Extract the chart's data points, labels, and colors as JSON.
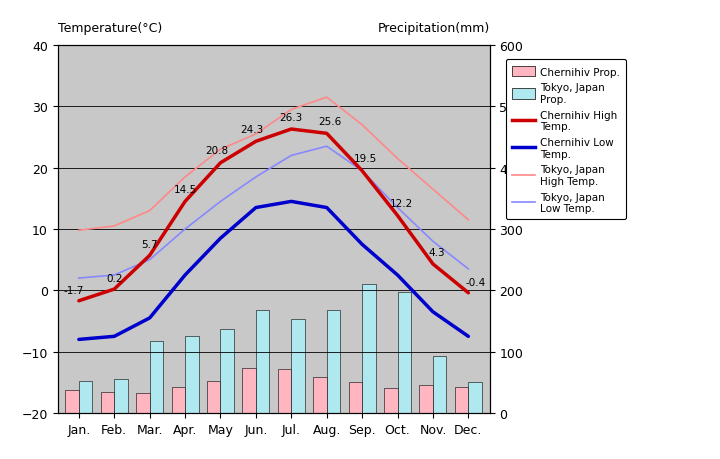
{
  "months": [
    "Jan.",
    "Feb.",
    "Mar.",
    "Apr.",
    "May",
    "Jun.",
    "Jul.",
    "Aug.",
    "Sep.",
    "Oct.",
    "Nov.",
    "Dec."
  ],
  "chernihiv_high": [
    -1.7,
    0.2,
    5.7,
    14.5,
    20.8,
    24.3,
    26.3,
    25.6,
    19.5,
    12.2,
    4.3,
    -0.4
  ],
  "chernihiv_low": [
    -8.0,
    -7.5,
    -4.5,
    2.5,
    8.5,
    13.5,
    14.5,
    13.5,
    7.5,
    2.5,
    -3.5,
    -7.5
  ],
  "tokyo_high": [
    9.8,
    10.5,
    13.0,
    18.5,
    23.0,
    25.5,
    29.5,
    31.5,
    27.0,
    21.5,
    16.5,
    11.5
  ],
  "tokyo_low": [
    2.0,
    2.5,
    5.0,
    10.0,
    14.5,
    18.5,
    22.0,
    23.5,
    19.5,
    13.5,
    8.0,
    3.5
  ],
  "chernihiv_precip_mm": [
    37,
    34,
    33,
    43,
    52,
    73,
    72,
    58,
    50,
    40,
    46,
    42
  ],
  "tokyo_precip_mm": [
    52,
    56,
    117,
    125,
    137,
    168,
    154,
    168,
    210,
    198,
    93,
    51
  ],
  "temp_ylim": [
    -20,
    40
  ],
  "precip_ylim": [
    0,
    600
  ],
  "temp_yticks": [
    -20,
    -10,
    0,
    10,
    20,
    30,
    40
  ],
  "precip_yticks": [
    0,
    100,
    200,
    300,
    400,
    500,
    600
  ],
  "background_color": "#c8c8c8",
  "chernihiv_high_color": "#cc0000",
  "chernihiv_low_color": "#0000cc",
  "tokyo_high_color": "#ff8888",
  "tokyo_low_color": "#8888ff",
  "chernihiv_precip_color": "#ffb6c1",
  "tokyo_precip_color": "#b0e8f0",
  "bar_width": 0.38,
  "ylabel_left": "Temperature(°C)",
  "ylabel_right": "Precipitation(mm)",
  "legend_labels": [
    "Chernihiv Prop.",
    "Tokyo, Japan\nProp.",
    "Chernihiv High\nTemp.",
    "Chernihiv Low\nTemp.",
    "Tokyo, Japan\nHigh Temp.",
    "Tokyo, Japan\nLow Temp."
  ]
}
